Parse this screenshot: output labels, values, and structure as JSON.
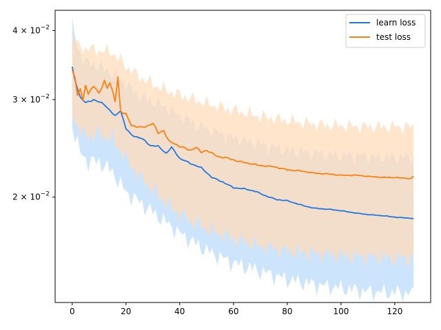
{
  "chart_data": {
    "type": "line",
    "title": "",
    "xlabel": "",
    "ylabel": "",
    "yscale": "log",
    "xlim": [
      -6.35,
      133.35
    ],
    "ylim": [
      0.0129,
      0.0435
    ],
    "grid": false,
    "legend_position": "top-right",
    "x_ticks": [
      0,
      20,
      40,
      60,
      80,
      100,
      120
    ],
    "x_tick_labels": [
      "0",
      "20",
      "40",
      "60",
      "80",
      "100",
      "120"
    ],
    "y_ticks": [
      0.02,
      0.03,
      0.04
    ],
    "y_tick_labels": [
      {
        "base": "2 × 10",
        "exp": "−2"
      },
      {
        "base": "3 × 10",
        "exp": "−2"
      },
      {
        "base": "4 × 10",
        "exp": "−2"
      }
    ],
    "series": [
      {
        "name": "learn loss",
        "color": "#1f77e0",
        "band_color": "#cce4fc",
        "keypoints": [
          [
            0,
            0.0343
          ],
          [
            1,
            0.0326
          ],
          [
            3,
            0.0303
          ],
          [
            5,
            0.0296
          ],
          [
            8,
            0.03
          ],
          [
            12,
            0.0294
          ],
          [
            16,
            0.028
          ],
          [
            18,
            0.0287
          ],
          [
            20,
            0.0266
          ],
          [
            22,
            0.0259
          ],
          [
            26,
            0.0255
          ],
          [
            29,
            0.0248
          ],
          [
            32,
            0.0247
          ],
          [
            35,
            0.024
          ],
          [
            37,
            0.0246
          ],
          [
            40,
            0.0235
          ],
          [
            44,
            0.023
          ],
          [
            48,
            0.0226
          ],
          [
            52,
            0.0217
          ],
          [
            56,
            0.0213
          ],
          [
            60,
            0.0208
          ],
          [
            64,
            0.0207
          ],
          [
            68,
            0.0205
          ],
          [
            72,
            0.0201
          ],
          [
            76,
            0.0198
          ],
          [
            80,
            0.0197
          ],
          [
            86,
            0.0193
          ],
          [
            90,
            0.0191
          ],
          [
            96,
            0.019
          ],
          [
            100,
            0.0189
          ],
          [
            106,
            0.0187
          ],
          [
            110,
            0.0186
          ],
          [
            116,
            0.0185
          ],
          [
            120,
            0.0184
          ],
          [
            127,
            0.0183
          ]
        ],
        "upper_keypoints": [
          [
            0,
            0.041
          ],
          [
            2,
            0.0372
          ],
          [
            5,
            0.035
          ],
          [
            10,
            0.0345
          ],
          [
            15,
            0.0335
          ],
          [
            20,
            0.032
          ],
          [
            25,
            0.0305
          ],
          [
            30,
            0.0298
          ],
          [
            35,
            0.029
          ],
          [
            40,
            0.028
          ],
          [
            50,
            0.0265
          ],
          [
            60,
            0.0256
          ],
          [
            70,
            0.0249
          ],
          [
            80,
            0.0243
          ],
          [
            90,
            0.024
          ],
          [
            100,
            0.0238
          ],
          [
            110,
            0.0237
          ],
          [
            127,
            0.0236
          ]
        ],
        "lower_keypoints": [
          [
            0,
            0.027
          ],
          [
            3,
            0.024
          ],
          [
            6,
            0.0232
          ],
          [
            10,
            0.0232
          ],
          [
            15,
            0.0222
          ],
          [
            20,
            0.0204
          ],
          [
            25,
            0.0196
          ],
          [
            30,
            0.0188
          ],
          [
            35,
            0.018
          ],
          [
            40,
            0.0172
          ],
          [
            50,
            0.016
          ],
          [
            60,
            0.0152
          ],
          [
            70,
            0.0147
          ],
          [
            80,
            0.0142
          ],
          [
            90,
            0.0139
          ],
          [
            100,
            0.0137
          ],
          [
            110,
            0.0135
          ],
          [
            127,
            0.0134
          ]
        ]
      },
      {
        "name": "test loss",
        "color": "#ff7f0e",
        "band_color": "#ffdcbb",
        "keypoints": [
          [
            0,
            0.034
          ],
          [
            1,
            0.033
          ],
          [
            2,
            0.0305
          ],
          [
            3,
            0.0315
          ],
          [
            4,
            0.0298
          ],
          [
            5,
            0.0318
          ],
          [
            6,
            0.0308
          ],
          [
            8,
            0.0318
          ],
          [
            10,
            0.0307
          ],
          [
            12,
            0.0325
          ],
          [
            13,
            0.0315
          ],
          [
            14,
            0.0322
          ],
          [
            16,
            0.0298
          ],
          [
            17,
            0.033
          ],
          [
            18,
            0.0286
          ],
          [
            20,
            0.0282
          ],
          [
            22,
            0.027
          ],
          [
            24,
            0.0268
          ],
          [
            26,
            0.0267
          ],
          [
            28,
            0.0269
          ],
          [
            30,
            0.0272
          ],
          [
            32,
            0.0261
          ],
          [
            34,
            0.0264
          ],
          [
            36,
            0.0252
          ],
          [
            38,
            0.025
          ],
          [
            40,
            0.0247
          ],
          [
            44,
            0.0243
          ],
          [
            46,
            0.0246
          ],
          [
            48,
            0.0241
          ],
          [
            50,
            0.0243
          ],
          [
            54,
            0.0237
          ],
          [
            58,
            0.0235
          ],
          [
            62,
            0.0232
          ],
          [
            66,
            0.023
          ],
          [
            70,
            0.0228
          ],
          [
            75,
            0.0227
          ],
          [
            80,
            0.0224
          ],
          [
            85,
            0.0223
          ],
          [
            90,
            0.0221
          ],
          [
            96,
            0.022
          ],
          [
            100,
            0.0219
          ],
          [
            106,
            0.0219
          ],
          [
            110,
            0.0218
          ],
          [
            116,
            0.0217
          ],
          [
            120,
            0.0217
          ],
          [
            126,
            0.0216
          ],
          [
            127,
            0.0218
          ]
        ],
        "upper_keypoints": [
          [
            0,
            0.0395
          ],
          [
            2,
            0.0375
          ],
          [
            5,
            0.0372
          ],
          [
            10,
            0.0368
          ],
          [
            15,
            0.0365
          ],
          [
            20,
            0.0345
          ],
          [
            25,
            0.033
          ],
          [
            30,
            0.032
          ],
          [
            35,
            0.0312
          ],
          [
            40,
            0.0306
          ],
          [
            50,
            0.0295
          ],
          [
            60,
            0.0287
          ],
          [
            70,
            0.028
          ],
          [
            80,
            0.0275
          ],
          [
            90,
            0.0271
          ],
          [
            100,
            0.0269
          ],
          [
            110,
            0.0268
          ],
          [
            127,
            0.0268
          ]
        ],
        "lower_keypoints": [
          [
            0,
            0.0285
          ],
          [
            3,
            0.0262
          ],
          [
            6,
            0.0258
          ],
          [
            10,
            0.026
          ],
          [
            15,
            0.0255
          ],
          [
            20,
            0.0235
          ],
          [
            25,
            0.0218
          ],
          [
            30,
            0.0206
          ],
          [
            35,
            0.0195
          ],
          [
            40,
            0.0186
          ],
          [
            50,
            0.0175
          ],
          [
            60,
            0.0168
          ],
          [
            70,
            0.0163
          ],
          [
            80,
            0.016
          ],
          [
            90,
            0.0158
          ],
          [
            100,
            0.0157
          ],
          [
            110,
            0.0156
          ],
          [
            127,
            0.0155
          ]
        ]
      }
    ]
  }
}
